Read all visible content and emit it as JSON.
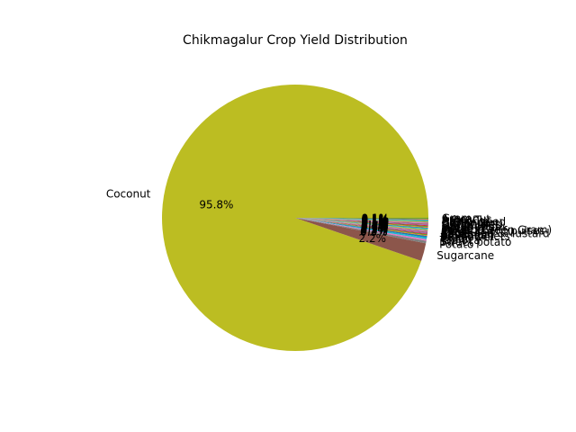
{
  "chart_data": {
    "type": "pie",
    "title": "Chikmagalur Crop Yield Distribution",
    "slices": [
      {
        "label": "Coconut",
        "value": 95.8,
        "pct_label": "95.8%",
        "color": "#bcbd22"
      },
      {
        "label": "Sugarcane",
        "value": 2.2,
        "pct_label": "2.2%",
        "color": "#8c564b"
      },
      {
        "label": "Potato",
        "value": 0.3,
        "pct_label": "0.3%",
        "color": "#7f7f7f"
      },
      {
        "label": "Sweet potato",
        "value": 0.2,
        "pct_label": "0.2%",
        "color": "#e377c2"
      },
      {
        "label": "Tapioca",
        "value": 0.2,
        "pct_label": "0.2%",
        "color": "#17becf"
      },
      {
        "label": "Onion",
        "value": 0.2,
        "pct_label": "0.2%",
        "color": "#1f77b4"
      },
      {
        "label": "Sunflower",
        "value": 0.1,
        "pct_label": "0.1%",
        "color": "#ff7f0e"
      },
      {
        "label": "Small millets",
        "value": 0.1,
        "pct_label": "0.1%",
        "color": "#2ca02c"
      },
      {
        "label": "Soyabean",
        "value": 0.1,
        "pct_label": "0.1%",
        "color": "#d62728"
      },
      {
        "label": "Sesamum",
        "value": 0.1,
        "pct_label": "0.1%",
        "color": "#9467bd"
      },
      {
        "label": "Rapeseed &Mustard",
        "value": 0.1,
        "pct_label": "0.1%",
        "color": "#8c564b"
      },
      {
        "label": "Ragi",
        "value": 0.1,
        "pct_label": "0.1%",
        "color": "#e377c2"
      },
      {
        "label": "Rice",
        "value": 0.1,
        "pct_label": "0.1%",
        "color": "#7f7f7f"
      },
      {
        "label": "Other Kharif pulses",
        "value": 0.1,
        "pct_label": "0.1%",
        "color": "#bcbd22"
      },
      {
        "label": "Moong(Green Gram)",
        "value": 0.1,
        "pct_label": "0.1%",
        "color": "#17becf"
      },
      {
        "label": "Maize",
        "value": 0.1,
        "pct_label": "0.1%",
        "color": "#1f77b4"
      },
      {
        "label": "Jowar",
        "value": 0.1,
        "pct_label": "0.1%",
        "color": "#ff7f0e"
      },
      {
        "label": "Horse-gram",
        "value": 0.1,
        "pct_label": "0.1%",
        "color": "#2ca02c"
      },
      {
        "label": "Groundnut",
        "value": 0.1,
        "pct_label": "0.1%",
        "color": "#d62728"
      },
      {
        "label": "Garlic",
        "value": 0.1,
        "pct_label": "0.1%",
        "color": "#9467bd"
      },
      {
        "label": "Dry chillies",
        "value": 0.1,
        "pct_label": "0.1%",
        "color": "#8c564b"
      },
      {
        "label": "Cotton(lint)",
        "value": 0.1,
        "pct_label": "0.1%",
        "color": "#e377c2"
      },
      {
        "label": "Coriander",
        "value": 0.1,
        "pct_label": "0.1%",
        "color": "#7f7f7f"
      },
      {
        "label": "Castor seed",
        "value": 0.1,
        "pct_label": "0.1%",
        "color": "#bcbd22"
      },
      {
        "label": "Bajra",
        "value": 0.1,
        "pct_label": "0.1%",
        "color": "#17becf"
      },
      {
        "label": "Arhar/Tur",
        "value": 0.1,
        "pct_label": "0.1%",
        "color": "#1f77b4"
      },
      {
        "label": "Arecanut",
        "value": 0.1,
        "pct_label": "0.1%",
        "color": "#ff7f0e"
      },
      {
        "label": "Gram",
        "value": 0.1,
        "pct_label": "0.1%",
        "color": "#2ca02c"
      }
    ],
    "start_angle_deg": 0,
    "direction": "counterclockwise",
    "legend": "none"
  }
}
